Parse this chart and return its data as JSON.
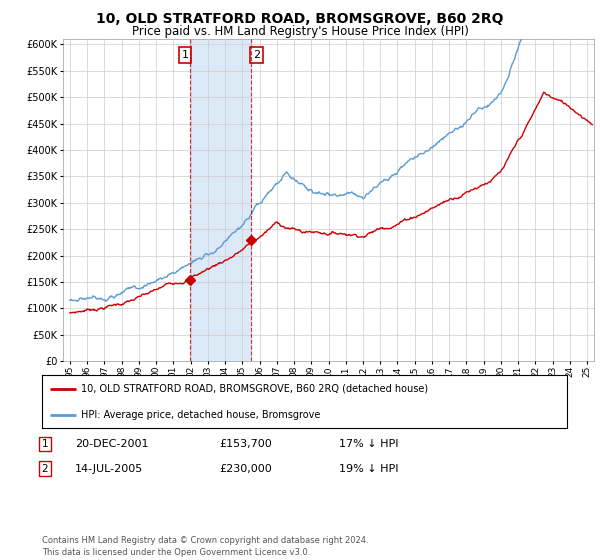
{
  "title": "10, OLD STRATFORD ROAD, BROMSGROVE, B60 2RQ",
  "subtitle": "Price paid vs. HM Land Registry's House Price Index (HPI)",
  "legend_line1": "10, OLD STRATFORD ROAD, BROMSGROVE, B60 2RQ (detached house)",
  "legend_line2": "HPI: Average price, detached house, Bromsgrove",
  "sale1_date": "20-DEC-2001",
  "sale1_price": "£153,700",
  "sale1_hpi": "17% ↓ HPI",
  "sale2_date": "14-JUL-2005",
  "sale2_price": "£230,000",
  "sale2_hpi": "19% ↓ HPI",
  "footer": "Contains HM Land Registry data © Crown copyright and database right 2024.\nThis data is licensed under the Open Government Licence v3.0.",
  "red_color": "#cc0000",
  "blue_color": "#5b9bd5",
  "shade_color": "#dce9f7",
  "marker1_x": 2001.97,
  "marker1_y": 153700,
  "marker2_x": 2005.53,
  "marker2_y": 230000,
  "vline1_x": 2001.97,
  "vline2_x": 2005.53,
  "ylim": [
    0,
    610000
  ],
  "xlim": [
    1994.6,
    2025.4
  ],
  "yticks": [
    0,
    50000,
    100000,
    150000,
    200000,
    250000,
    300000,
    350000,
    400000,
    450000,
    500000,
    550000,
    600000
  ],
  "xticks": [
    1995,
    1996,
    1997,
    1998,
    1999,
    2000,
    2001,
    2002,
    2003,
    2004,
    2005,
    2006,
    2007,
    2008,
    2009,
    2010,
    2011,
    2012,
    2013,
    2014,
    2015,
    2016,
    2017,
    2018,
    2019,
    2020,
    2021,
    2022,
    2023,
    2024,
    2025
  ]
}
